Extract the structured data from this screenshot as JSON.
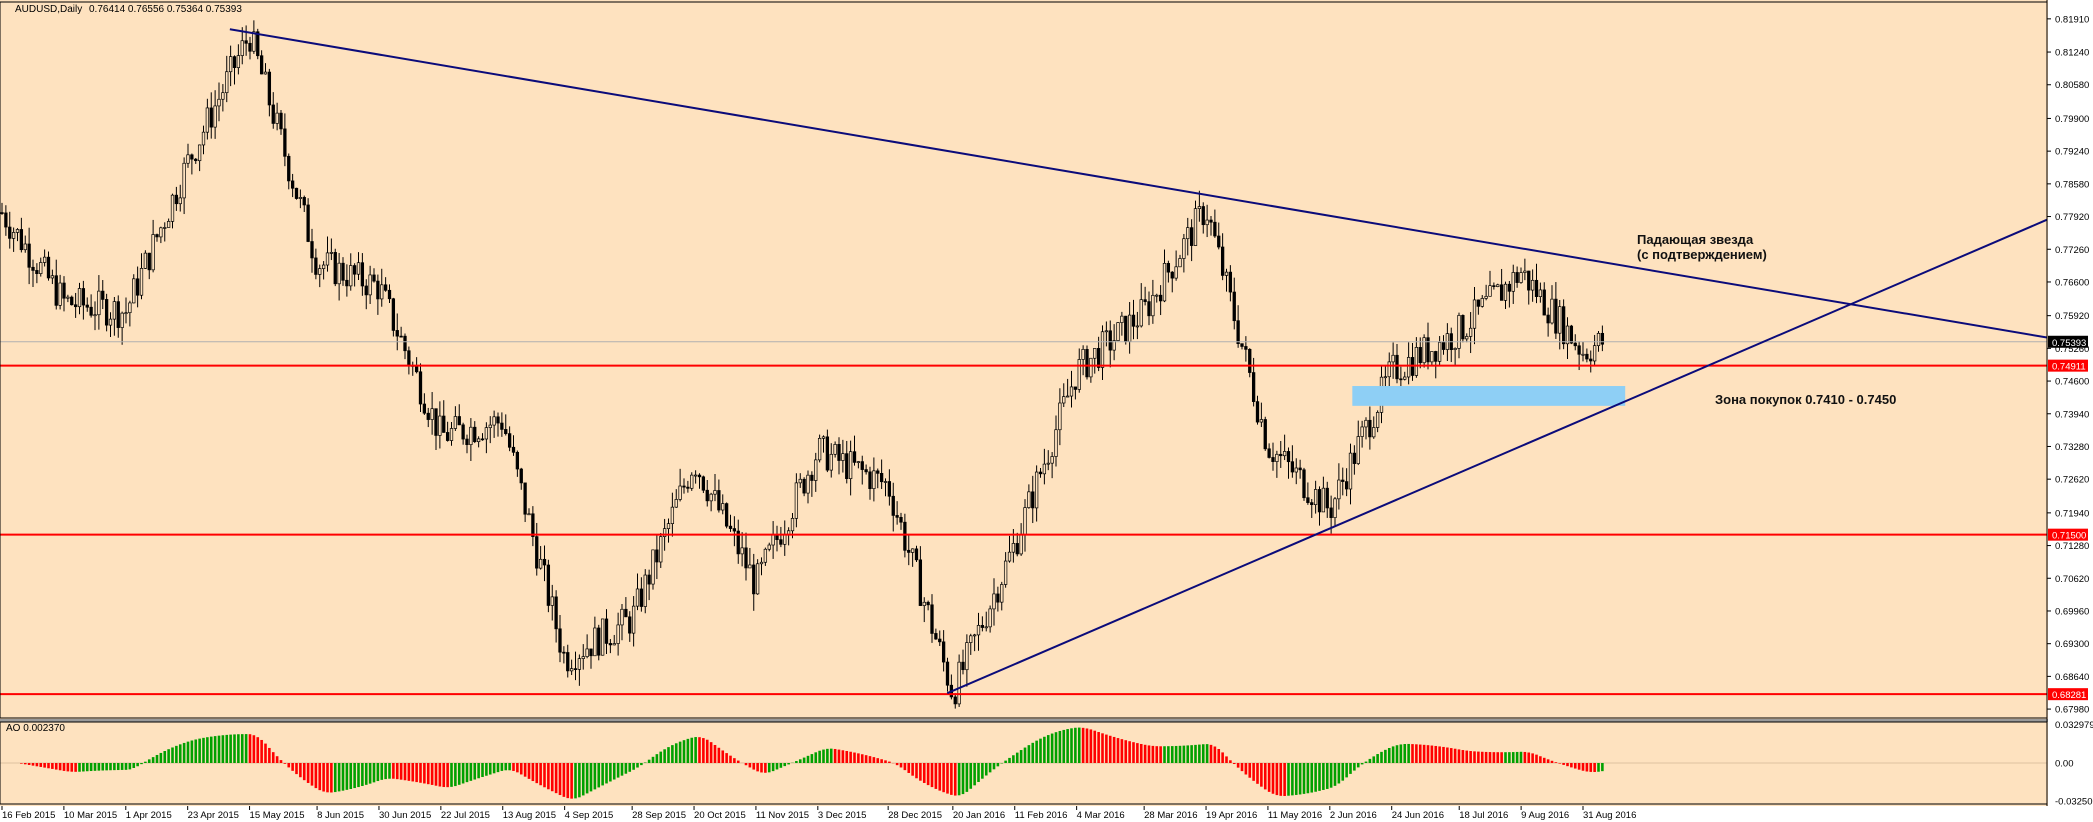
{
  "window": {
    "symbol": "AUDUSD,Daily",
    "ohlc": "0.76414 0.76556 0.75364 0.75393",
    "ao_label": "AO 0.002370"
  },
  "colors": {
    "background": "#fee2bf",
    "candle": "#000000",
    "trendline": "#0b0b7a",
    "support_line": "#ff0000",
    "zone": "#8ecff5",
    "ao_up": "#00a000",
    "ao_down": "#ff0000"
  },
  "annotations": {
    "pattern_line1": "Падающая звезда",
    "pattern_line2": "(с подтверждением)",
    "zone_label": "Зона покупок 0.7410 - 0.7450"
  },
  "chart_data": {
    "type": "candlestick",
    "symbol": "AUDUSD",
    "timeframe": "Daily",
    "ylim": [
      0.678,
      0.8225
    ],
    "y_ticks": [
      "0.81910",
      "0.81240",
      "0.80580",
      "0.79900",
      "0.79240",
      "0.78580",
      "0.77920",
      "0.77260",
      "0.76600",
      "0.75920",
      "0.75260",
      "0.74600",
      "0.73940",
      "0.73280",
      "0.72620",
      "0.71940",
      "0.71280",
      "0.70620",
      "0.69960",
      "0.69300",
      "0.68640",
      "0.67980"
    ],
    "x_ticks": [
      "16 Feb 2015",
      "10 Mar 2015",
      "1 Apr 2015",
      "23 Apr 2015",
      "15 May 2015",
      "8 Jun 2015",
      "30 Jun 2015",
      "22 Jul 2015",
      "13 Aug 2015",
      "4 Sep 2015",
      "28 Sep 2015",
      "20 Oct 2015",
      "11 Nov 2015",
      "3 Dec 2015",
      "28 Dec 2015",
      "20 Jan 2016",
      "11 Feb 2016",
      "4 Mar 2016",
      "28 Mar 2016",
      "19 Apr 2016",
      "11 May 2016",
      "2 Jun 2016",
      "24 Jun 2016",
      "18 Jul 2016",
      "9 Aug 2016",
      "31 Aug 2016"
    ],
    "price_path": [
      [
        "16 Feb 2015",
        0.78
      ],
      [
        "10 Mar 2015",
        0.762
      ],
      [
        "1 Apr 2015",
        0.76
      ],
      [
        "23 Apr 2015",
        0.79
      ],
      [
        "15 May 2015",
        0.816
      ],
      [
        "8 Jun 2015",
        0.77
      ],
      [
        "30 Jun 2015",
        0.765
      ],
      [
        "22 Jul 2015",
        0.735
      ],
      [
        "13 Aug 2015",
        0.738
      ],
      [
        "4 Sep 2015",
        0.69
      ],
      [
        "28 Sep 2015",
        0.698
      ],
      [
        "20 Oct 2015",
        0.73
      ],
      [
        "11 Nov 2015",
        0.705
      ],
      [
        "3 Dec 2015",
        0.732
      ],
      [
        "28 Dec 2015",
        0.725
      ],
      [
        "20 Jan 2016",
        0.683
      ],
      [
        "11 Feb 2016",
        0.713
      ],
      [
        "4 Mar 2016",
        0.748
      ],
      [
        "28 Mar 2016",
        0.76
      ],
      [
        "19 Apr 2016",
        0.781
      ],
      [
        "11 May 2016",
        0.733
      ],
      [
        "2 Jun 2016",
        0.72
      ],
      [
        "24 Jun 2016",
        0.748
      ],
      [
        "18 Jul 2016",
        0.756
      ],
      [
        "9 Aug 2016",
        0.768
      ],
      [
        "31 Aug 2016",
        0.752
      ],
      [
        "7 Sep 2016",
        0.7539
      ]
    ],
    "current_price": "0.75393",
    "horizontal_levels": [
      {
        "label": "0.74911",
        "value": 0.74911
      },
      {
        "label": "0.71500",
        "value": 0.715
      },
      {
        "label": "0.68281",
        "value": 0.68281
      }
    ],
    "trendlines": [
      {
        "name": "resistance",
        "from": [
          "8 May 2015",
          0.817
        ],
        "to": [
          "7 Sep 2016",
          0.77
        ],
        "extended": true
      },
      {
        "name": "support",
        "from": [
          "18 Jan 2016",
          0.683
        ],
        "to": [
          "1 Jun 2016",
          0.716
        ],
        "extended": true
      }
    ],
    "zone": {
      "from": "10 Jun 2016",
      "to": "15 Sep 2016",
      "low": 0.741,
      "high": 0.745
    },
    "indicator": {
      "name": "AO",
      "value": 0.00237,
      "ylim": [
        -0.035,
        0.035
      ],
      "y_ticks": [
        "0.032979",
        "0.00",
        "-0.032509"
      ]
    }
  }
}
